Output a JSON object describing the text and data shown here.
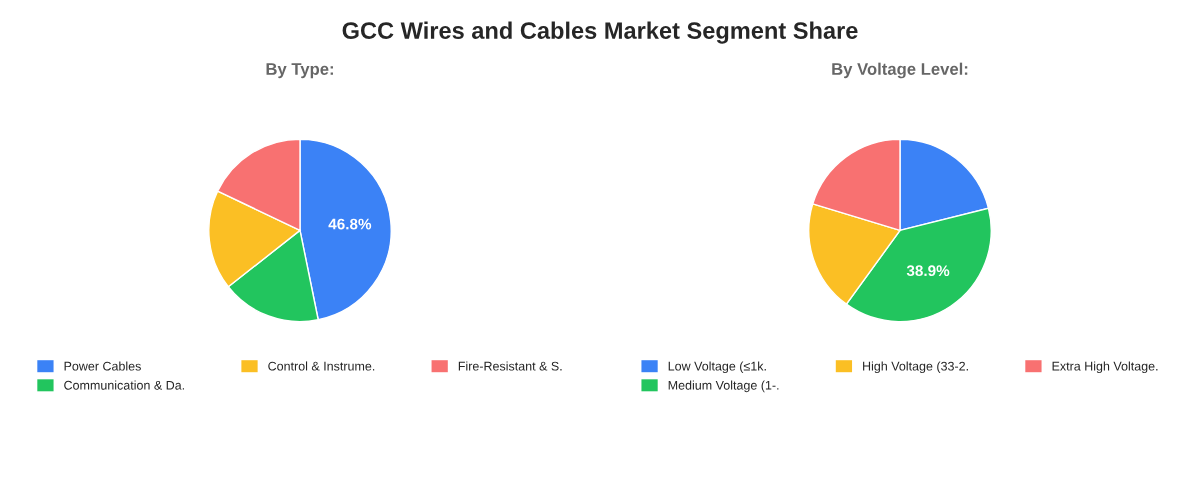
{
  "chart_data": [
    {
      "type": "pie",
      "title": "GCC Wires and Cables Market Segment Share",
      "subtitle": "By Type:",
      "categories": [
        "Power Cables",
        "Communication & Da.",
        "Control & Instrume.",
        "Fire-Resistant & S."
      ],
      "values": [
        46.8,
        17.6,
        17.7,
        17.9
      ],
      "value_labels": [
        "46.8%",
        null,
        null,
        null
      ],
      "colors": [
        "#3b82f6",
        "#22c55e",
        "#fbbf24",
        "#f87171"
      ],
      "legend": "bottom"
    },
    {
      "type": "pie",
      "subtitle": "By Voltage Level:",
      "categories": [
        "Low Voltage (≤1k.",
        "Medium Voltage (1-.",
        "High Voltage (33-2.",
        "Extra High Voltage."
      ],
      "values": [
        21.1,
        38.9,
        19.7,
        20.3
      ],
      "value_labels": [
        null,
        "38.9%",
        null,
        null
      ],
      "colors": [
        "#3b82f6",
        "#22c55e",
        "#fbbf24",
        "#f87171"
      ],
      "legend": "bottom"
    }
  ]
}
